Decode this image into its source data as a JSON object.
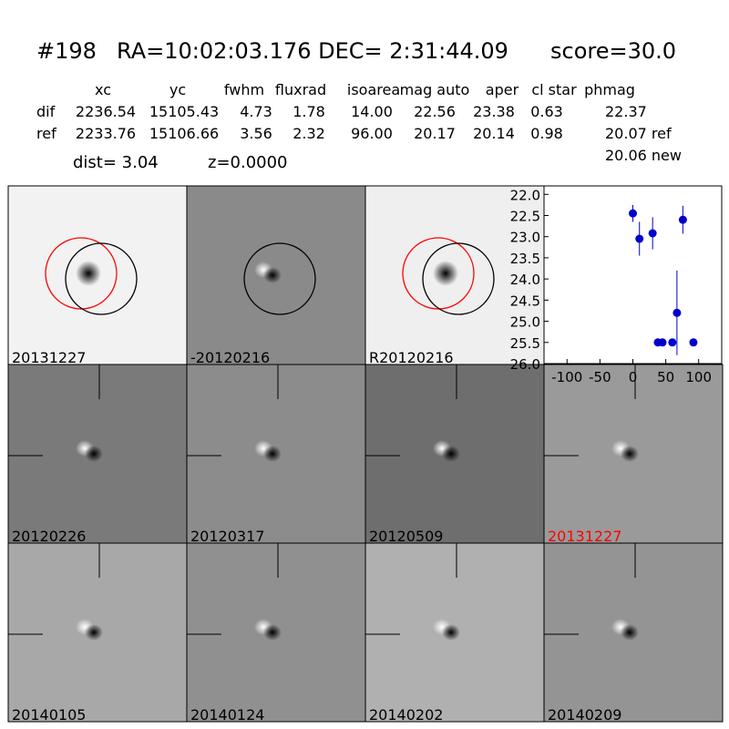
{
  "header": {
    "id": "#198",
    "coords": "RA=10:02:03.176 DEC= 2:31:44.09",
    "score": "score=30.0"
  },
  "table": {
    "columns": [
      "xc",
      "yc",
      "fwhm",
      "fluxrad",
      "isoarea",
      "mag auto",
      "aper",
      "cl star",
      "phmag"
    ],
    "rows": [
      [
        "dif",
        "2236.54",
        "15105.43",
        "4.73",
        "1.78",
        "14.00",
        "22.56",
        "23.38",
        "0.63",
        "22.37"
      ],
      [
        "ref",
        "2233.76",
        "15106.66",
        "3.56",
        "2.32",
        "96.00",
        "20.17",
        "20.14",
        "0.98",
        "20.07 ref"
      ]
    ],
    "note": "20.06 new"
  },
  "summary": {
    "dist": "dist=  3.04",
    "z": "z=0.0000"
  },
  "panels": [
    "20131227",
    "-20120216",
    "R20120216",
    "20120226",
    "20120317",
    "20120509",
    "20131227",
    "20140105",
    "20140124",
    "20140202",
    "20140209"
  ],
  "chart_data": {
    "type": "errorbar",
    "color": "#0000cc",
    "x": [
      0,
      10,
      30,
      38,
      45,
      60,
      67,
      76,
      92
    ],
    "values": [
      22.45,
      23.05,
      22.92,
      25.5,
      25.5,
      25.5,
      24.8,
      22.6,
      25.5
    ],
    "errors": [
      0.2,
      0.4,
      0.38,
      0.05,
      0.05,
      0.05,
      1.0,
      0.33,
      0.05
    ],
    "xlim": [
      -135,
      135
    ],
    "xticks": [
      -100,
      -50,
      0,
      50,
      100
    ],
    "ylim": [
      26.0,
      21.8
    ],
    "yticks": [
      {
        "value": 22,
        "label": "22.0"
      },
      22.5,
      {
        "value": 23,
        "label": "23.0"
      },
      23.5,
      {
        "value": 24,
        "label": "24.0"
      },
      24.5,
      {
        "value": 25,
        "label": "25.0"
      },
      25.5,
      {
        "value": 26,
        "label": "26.0"
      }
    ]
  }
}
